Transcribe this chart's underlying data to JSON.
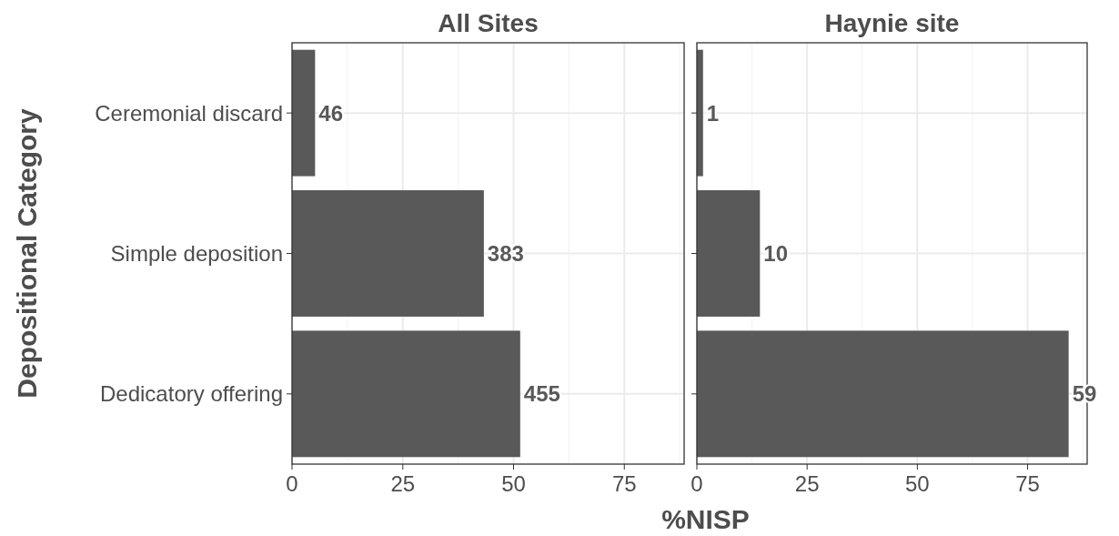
{
  "chart_data": [
    {
      "type": "bar",
      "orientation": "horizontal",
      "title": "All Sites",
      "xlabel": "%NISP",
      "ylabel": "Depositional Category",
      "categories": [
        "Ceremonial discard",
        "Simple deposition",
        "Dedicatory offering"
      ],
      "values": [
        5.2,
        43.3,
        51.5
      ],
      "annotations": [
        {
          "text": "46",
          "x": 5.2,
          "y": "Ceremonial discard"
        },
        {
          "text": "383",
          "x": 43.3,
          "y": "Simple deposition"
        },
        {
          "text": "455",
          "x": 51.5,
          "y": "Dedicatory offering"
        }
      ],
      "color": "#595959",
      "xlim": [
        0,
        88.5
      ],
      "xticks": [
        0,
        25,
        50,
        75
      ],
      "grid": true
    },
    {
      "type": "bar",
      "orientation": "horizontal",
      "title": "Haynie site",
      "categories": [
        "Ceremonial discard",
        "Simple deposition",
        "Dedicatory offering"
      ],
      "values": [
        1.4,
        14.3,
        84.3
      ],
      "annotations": [
        {
          "text": "1",
          "x": 1.4,
          "y": "Ceremonial discard"
        },
        {
          "text": "10",
          "x": 14.3,
          "y": "Simple deposition"
        },
        {
          "text": "59",
          "x": 84.3,
          "y": "Dedicatory offering"
        }
      ],
      "color": "#595959",
      "xlim": [
        0,
        88.5
      ],
      "xticks": [
        0,
        25,
        50,
        75
      ],
      "grid": true,
      "tick_labels": "x"
    }
  ]
}
